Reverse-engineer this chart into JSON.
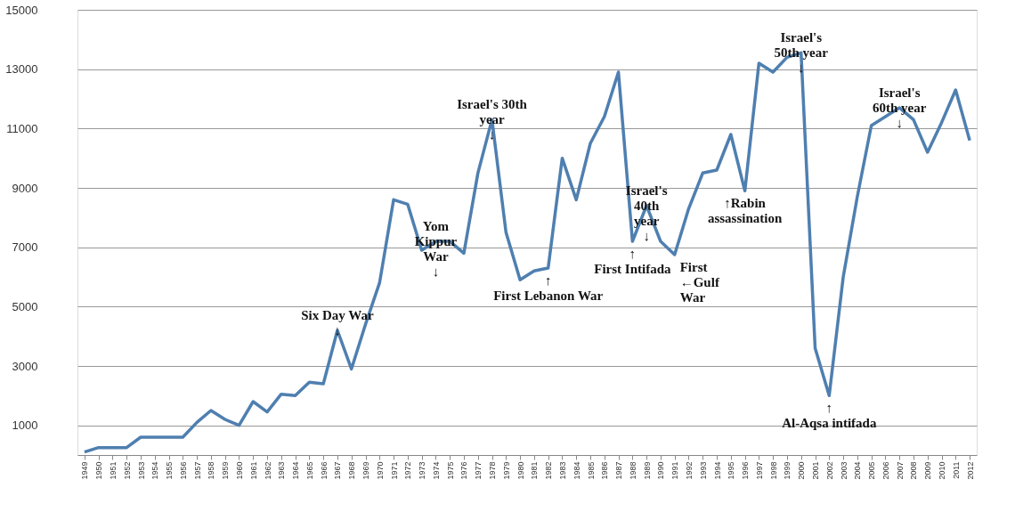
{
  "chart_data": {
    "type": "line",
    "categories": [
      "1949",
      "1950",
      "1951",
      "1952",
      "1953",
      "1954",
      "1955",
      "1956",
      "1957",
      "1958",
      "1959",
      "1960",
      "1961",
      "1962",
      "1963",
      "1964",
      "1965",
      "1966",
      "1967",
      "1968",
      "1969",
      "1970",
      "1971",
      "1972",
      "1973",
      "1974",
      "1975",
      "1976",
      "1977",
      "1978",
      "1979",
      "1980",
      "1981",
      "1982",
      "1983",
      "1984",
      "1985",
      "1986",
      "1987",
      "1988",
      "1989",
      "1990",
      "1991",
      "1992",
      "1993",
      "1994",
      "1995",
      "1996",
      "1997",
      "1998",
      "1999",
      "2000",
      "2001",
      "2002",
      "2003",
      "2004",
      "2005",
      "2006",
      "2007",
      "2008",
      "2009",
      "2010",
      "2011",
      "2012"
    ],
    "series": [
      {
        "color": "#4f7fb0",
        "values": [
          100,
          250,
          250,
          250,
          600,
          600,
          600,
          600,
          1100,
          1500,
          1200,
          1000,
          1800,
          1450,
          2050,
          2000,
          2450,
          2400,
          4200,
          2900,
          4400,
          5800,
          8600,
          8450,
          6900,
          7200,
          7200,
          6800,
          9500,
          11300,
          7500,
          5900,
          6200,
          6300,
          10000,
          8600,
          10500,
          11400,
          12900,
          7200,
          8400,
          7200,
          6750,
          8300,
          9500,
          9600,
          10800,
          8900,
          13200,
          12900,
          13400,
          13550,
          3600,
          2000,
          6000,
          8700,
          11100,
          11400,
          11700,
          11300,
          10200,
          11200,
          12300,
          10600
        ]
      }
    ],
    "ylim": [
      0,
      15000
    ],
    "yticks": [
      1000,
      3000,
      5000,
      7000,
      9000,
      11000,
      13000,
      15000
    ],
    "grid": "y",
    "legend": false,
    "marker": "none",
    "line_style": "solid",
    "annotations": [
      {
        "text": "Six Day War\n↓",
        "x": "1967",
        "y": 4200
      },
      {
        "text": "Yom\nKippur\nWar\n↓",
        "x": "1974",
        "y": 7200
      },
      {
        "text": "Israel's 30th\nyear\n↓",
        "x": "1978",
        "y": 11300
      },
      {
        "text": "↑\nFirst Lebanon War",
        "x": "1982",
        "y": 6300
      },
      {
        "text": "Israel's\n40th\nyear\n↓",
        "x": "1989",
        "y": 8400
      },
      {
        "text": "↑\nFirst Intifada",
        "x": "1988",
        "y": 7200
      },
      {
        "text": "First\n←Gulf\nWar",
        "x": "1991",
        "y": 6750
      },
      {
        "text": "↑Rabin\nassassination",
        "x": "1996",
        "y": 8900
      },
      {
        "text": "Israel's\n50th year\n↓",
        "x": "2000",
        "y": 13550
      },
      {
        "text": "↑\nAl-Aqsa intifada",
        "x": "2002",
        "y": 2000
      },
      {
        "text": "Israel's\n60th year\n↓",
        "x": "2007",
        "y": 11700
      }
    ]
  }
}
